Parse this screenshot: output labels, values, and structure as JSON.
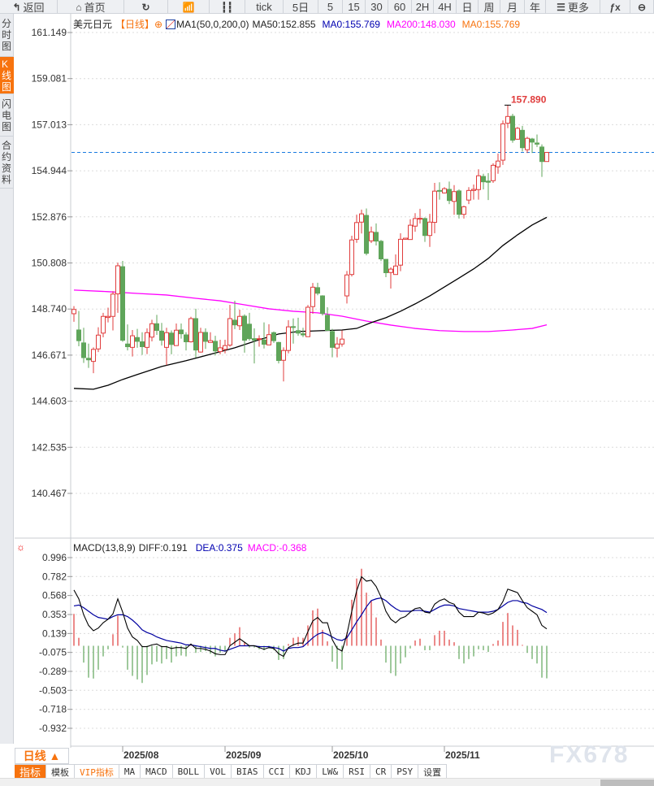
{
  "toolbar": {
    "items": [
      {
        "label": "返回",
        "icon": "back-arrow-icon",
        "w": 71
      },
      {
        "label": "首页",
        "icon": "home-icon",
        "w": 82
      },
      {
        "label": "",
        "icon": "refresh-icon",
        "w": 54
      },
      {
        "label": "",
        "icon": "indicator-chart-icon",
        "w": 51
      },
      {
        "label": "",
        "icon": "candlestick-icon",
        "w": 44
      },
      {
        "label": "tick",
        "w": 47
      },
      {
        "label": "5日",
        "w": 43
      },
      {
        "label": "5",
        "w": 30
      },
      {
        "label": "15",
        "w": 28
      },
      {
        "label": "30",
        "w": 28
      },
      {
        "label": "60",
        "w": 29
      },
      {
        "label": "2H",
        "w": 27
      },
      {
        "label": "4H",
        "w": 28
      },
      {
        "label": "日",
        "w": 27
      },
      {
        "label": "周",
        "w": 27
      },
      {
        "label": "月",
        "w": 30
      },
      {
        "label": "年",
        "w": 26
      },
      {
        "label": "更多",
        "icon": "menu-icon",
        "w": 67
      },
      {
        "label": "",
        "icon": "fx-icon",
        "w": 37
      },
      {
        "label": "",
        "icon": "zoom-icon",
        "w": 29
      }
    ]
  },
  "sidebar": {
    "tabs": [
      {
        "label": "分时图",
        "h": 53
      },
      {
        "label": "K线图",
        "h": 46,
        "active": true
      },
      {
        "label": "闪电图",
        "h": 52
      },
      {
        "label": "合约资料",
        "h": 64
      }
    ]
  },
  "legend": {
    "symbol": "美元日元",
    "period": "【日线】",
    "period_icon": "⊕",
    "ma_setting": "MA1(50,0,200,0)",
    "ma50": "MA50:152.855",
    "ma0_blue": "MA0:155.769",
    "ma200": "MA200:148.030",
    "ma0_orange": "MA0:155.769"
  },
  "macd_legend": {
    "title": "MACD(13,8,9)",
    "diff": "DIFF:0.191",
    "dea": "DEA:0.375",
    "macd": "MACD:-0.368"
  },
  "period_selector": {
    "label": "日线 ▲"
  },
  "bottom_tabs": [
    "指标",
    "模板",
    "VIP指标",
    "MA",
    "MACD",
    "BOLL",
    "VOL",
    "BIAS",
    "CCI",
    "KDJ",
    "LW&",
    "RSI",
    "CR",
    "PSY",
    "设置"
  ],
  "watermark": "FX678",
  "colors": {
    "up": "#e03c3c",
    "down": "#5fa55a",
    "ma50": "#000000",
    "ma200": "#ff00ff",
    "current_price_line": "#1a7be0",
    "dea": "#0000a0",
    "active_tab": "#f7730e"
  },
  "chart_data": [
    {
      "type": "candlestick",
      "title": "美元日元",
      "ylim": [
        140.467,
        161.149
      ],
      "y_ticks": [
        "161.149",
        "159.081",
        "157.013",
        "154.944",
        "152.876",
        "150.808",
        "148.740",
        "146.671",
        "144.603",
        "142.535",
        "140.467"
      ],
      "x_ticks": [
        {
          "label": "2025/08",
          "bar": 11
        },
        {
          "label": "2025/09",
          "bar": 32
        },
        {
          "label": "2025/10",
          "bar": 54
        },
        {
          "label": "2025/11",
          "bar": 77
        }
      ],
      "current_price": 155.769,
      "high_label": {
        "text": "157.890",
        "bar": 90,
        "value": 157.89
      },
      "ohlc": [
        [
          148.53,
          148.87,
          148.17,
          148.72
        ],
        [
          147.8,
          148.65,
          147.07,
          147.32
        ],
        [
          147.22,
          147.9,
          146.32,
          146.56
        ],
        [
          146.53,
          147.19,
          146.1,
          146.46
        ],
        [
          146.39,
          147.02,
          145.86,
          146.93
        ],
        [
          146.95,
          147.92,
          146.81,
          147.57
        ],
        [
          147.66,
          148.57,
          147.47,
          148.41
        ],
        [
          148.36,
          148.8,
          148.14,
          148.41
        ],
        [
          148.41,
          149.54,
          147.78,
          149.41
        ],
        [
          149.42,
          150.82,
          148.57,
          150.68
        ],
        [
          150.64,
          150.9,
          147.27,
          147.34
        ],
        [
          147.17,
          148.05,
          146.88,
          147.05
        ],
        [
          147.02,
          147.8,
          146.61,
          147.54
        ],
        [
          147.46,
          147.85,
          147.0,
          147.29
        ],
        [
          147.27,
          147.7,
          146.68,
          147.05
        ],
        [
          147.02,
          147.87,
          146.72,
          147.68
        ],
        [
          147.48,
          148.26,
          147.29,
          148.08
        ],
        [
          148.08,
          148.48,
          147.58,
          147.78
        ],
        [
          147.75,
          148.12,
          147.1,
          147.34
        ],
        [
          147.02,
          147.9,
          146.22,
          147.68
        ],
        [
          147.66,
          147.78,
          146.71,
          147.15
        ],
        [
          147.1,
          148.09,
          147.1,
          147.79
        ],
        [
          147.8,
          148.09,
          147.41,
          147.63
        ],
        [
          147.58,
          147.7,
          146.88,
          147.27
        ],
        [
          147.27,
          148.39,
          147.24,
          148.31
        ],
        [
          148.31,
          148.75,
          146.56,
          146.9
        ],
        [
          146.81,
          147.9,
          146.78,
          147.69
        ],
        [
          147.69,
          147.87,
          146.95,
          147.29
        ],
        [
          147.24,
          147.7,
          147.24,
          147.32
        ],
        [
          147.29,
          147.54,
          146.66,
          146.86
        ],
        [
          146.83,
          147.36,
          146.71,
          147.0
        ],
        [
          146.93,
          147.36,
          146.75,
          147.1
        ],
        [
          147.12,
          148.93,
          147.05,
          148.31
        ],
        [
          148.24,
          149.11,
          147.84,
          148.03
        ],
        [
          147.99,
          148.71,
          147.8,
          148.41
        ],
        [
          148.42,
          148.5,
          146.78,
          147.34
        ],
        [
          148.06,
          148.57,
          147.32,
          147.41
        ],
        [
          147.41,
          147.87,
          146.3,
          147.34
        ],
        [
          147.39,
          147.56,
          147.05,
          147.41
        ],
        [
          147.35,
          148.14,
          146.97,
          147.16
        ],
        [
          147.13,
          148.06,
          147.13,
          147.59
        ],
        [
          147.68,
          147.73,
          147.22,
          147.32
        ],
        [
          147.24,
          147.27,
          146.3,
          146.43
        ],
        [
          146.44,
          147.02,
          145.49,
          146.88
        ],
        [
          146.88,
          148.24,
          146.75,
          147.94
        ],
        [
          147.95,
          148.32,
          147.19,
          147.92
        ],
        [
          147.77,
          148.35,
          147.54,
          147.66
        ],
        [
          147.63,
          147.9,
          147.48,
          147.58
        ],
        [
          147.5,
          148.92,
          147.5,
          148.82
        ],
        [
          148.85,
          149.91,
          148.53,
          149.72
        ],
        [
          149.7,
          149.92,
          149.36,
          149.45
        ],
        [
          149.33,
          149.36,
          148.45,
          148.54
        ],
        [
          148.46,
          148.82,
          147.78,
          147.78
        ],
        [
          147.73,
          147.85,
          146.57,
          147.02
        ],
        [
          146.99,
          147.48,
          146.57,
          147.17
        ],
        [
          147.17,
          147.78,
          147.05,
          147.39
        ],
        [
          149.33,
          150.45,
          148.99,
          150.27
        ],
        [
          150.29,
          152.03,
          150.2,
          151.84
        ],
        [
          151.87,
          152.98,
          151.71,
          152.62
        ],
        [
          152.64,
          153.2,
          152.13,
          153.01
        ],
        [
          152.94,
          153.25,
          151.15,
          151.24
        ],
        [
          151.8,
          152.44,
          151.7,
          152.2
        ],
        [
          152.18,
          152.58,
          151.59,
          151.79
        ],
        [
          151.78,
          151.84,
          150.89,
          150.99
        ],
        [
          150.97,
          150.97,
          150.17,
          150.37
        ],
        [
          150.38,
          150.61,
          149.66,
          150.53
        ],
        [
          150.29,
          151.19,
          150.28,
          150.67
        ],
        [
          150.71,
          152.14,
          150.44,
          151.87
        ],
        [
          151.87,
          151.92,
          151.85,
          151.92
        ],
        [
          151.86,
          152.77,
          151.85,
          152.5
        ],
        [
          152.46,
          153.04,
          152.21,
          152.8
        ],
        [
          152.79,
          153.24,
          152.58,
          152.81
        ],
        [
          152.8,
          152.85,
          151.75,
          152.04
        ],
        [
          152.04,
          153.01,
          151.53,
          152.64
        ],
        [
          152.63,
          154.4,
          152.14,
          154.03
        ],
        [
          154.06,
          154.43,
          153.65,
          154.04
        ],
        [
          153.95,
          154.21,
          153.92,
          154.14
        ],
        [
          154.11,
          154.46,
          153.45,
          153.61
        ],
        [
          153.57,
          154.3,
          152.97,
          154.01
        ],
        [
          154.04,
          154.11,
          152.8,
          152.99
        ],
        [
          152.99,
          153.38,
          152.8,
          153.33
        ],
        [
          153.63,
          154.21,
          153.45,
          154.06
        ],
        [
          154.06,
          154.33,
          153.65,
          154.11
        ],
        [
          154.1,
          155.01,
          153.65,
          154.72
        ],
        [
          154.69,
          154.81,
          154.11,
          154.45
        ],
        [
          154.48,
          154.84,
          153.63,
          154.43
        ],
        [
          154.5,
          155.28,
          154.4,
          155.19
        ],
        [
          155.12,
          155.72,
          154.81,
          155.38
        ],
        [
          155.42,
          157.2,
          155.21,
          157.05
        ],
        [
          157.08,
          157.89,
          156.86,
          157.38
        ],
        [
          157.39,
          157.5,
          156.2,
          156.32
        ],
        [
          156.36,
          156.91,
          156.34,
          156.85
        ],
        [
          156.76,
          156.96,
          155.81,
          155.98
        ],
        [
          155.89,
          156.47,
          155.74,
          156.4
        ],
        [
          156.37,
          156.42,
          155.74,
          156.23
        ],
        [
          156.19,
          156.57,
          156.01,
          156.14
        ],
        [
          156.01,
          156.13,
          154.67,
          155.36
        ],
        [
          155.36,
          155.74,
          155.35,
          155.769
        ]
      ],
      "ma50": [
        [
          1,
          145.18
        ],
        [
          5,
          145.14
        ],
        [
          8,
          145.32
        ],
        [
          11,
          145.58
        ],
        [
          14,
          145.8
        ],
        [
          19,
          146.16
        ],
        [
          24,
          146.42
        ],
        [
          29,
          146.71
        ],
        [
          34,
          147.0
        ],
        [
          39,
          147.36
        ],
        [
          43,
          147.62
        ],
        [
          47,
          147.73
        ],
        [
          52,
          147.77
        ],
        [
          56,
          147.8
        ],
        [
          59,
          147.87
        ],
        [
          62,
          148.13
        ],
        [
          65,
          148.35
        ],
        [
          68,
          148.64
        ],
        [
          71,
          148.97
        ],
        [
          74,
          149.33
        ],
        [
          77,
          149.73
        ],
        [
          80,
          150.13
        ],
        [
          83,
          150.54
        ],
        [
          86,
          151.01
        ],
        [
          89,
          151.59
        ],
        [
          92,
          152.07
        ],
        [
          95,
          152.51
        ],
        [
          98,
          152.855
        ]
      ],
      "ma200": [
        [
          1,
          149.59
        ],
        [
          8,
          149.52
        ],
        [
          14,
          149.44
        ],
        [
          20,
          149.37
        ],
        [
          26,
          149.22
        ],
        [
          31,
          149.11
        ],
        [
          36,
          148.93
        ],
        [
          41,
          148.75
        ],
        [
          46,
          148.64
        ],
        [
          51,
          148.57
        ],
        [
          56,
          148.42
        ],
        [
          61,
          148.2
        ],
        [
          66,
          148.02
        ],
        [
          71,
          147.87
        ],
        [
          76,
          147.77
        ],
        [
          81,
          147.73
        ],
        [
          86,
          147.73
        ],
        [
          91,
          147.8
        ],
        [
          95,
          147.87
        ],
        [
          98,
          148.03
        ]
      ]
    },
    {
      "type": "macd",
      "title": "MACD(13,8,9)",
      "ylim": [
        -0.932,
        0.996
      ],
      "y_ticks": [
        "0.996",
        "0.782",
        "0.568",
        "0.353",
        "0.139",
        "-0.075",
        "-0.289",
        "-0.503",
        "-0.718",
        "-0.932"
      ],
      "hist": [
        0.36,
        0.09,
        -0.19,
        -0.36,
        -0.37,
        -0.27,
        -0.12,
        -0.04,
        0.13,
        0.34,
        -0.02,
        -0.27,
        -0.34,
        -0.38,
        -0.42,
        -0.33,
        -0.21,
        -0.18,
        -0.2,
        -0.15,
        -0.19,
        -0.12,
        -0.11,
        -0.12,
        0.02,
        -0.08,
        -0.07,
        -0.06,
        -0.09,
        -0.12,
        -0.08,
        -0.07,
        0.09,
        0.14,
        0.21,
        0.04,
        -0.02,
        -0.02,
        -0.04,
        -0.05,
        -0.03,
        -0.05,
        -0.16,
        -0.15,
        0.02,
        0.09,
        0.1,
        0.09,
        0.23,
        0.4,
        0.42,
        0.18,
        0.05,
        -0.18,
        -0.26,
        -0.27,
        0.15,
        0.52,
        0.76,
        0.87,
        0.6,
        0.51,
        0.32,
        0.07,
        -0.19,
        -0.31,
        -0.34,
        -0.2,
        -0.13,
        -0.03,
        0.06,
        0.08,
        -0.05,
        -0.05,
        0.12,
        0.17,
        0.17,
        0.07,
        0.04,
        -0.15,
        -0.2,
        -0.15,
        -0.12,
        -0.04,
        -0.05,
        -0.07,
        0.02,
        0.06,
        0.27,
        0.37,
        0.23,
        0.18,
        0.01,
        -0.08,
        -0.15,
        -0.2,
        -0.36,
        -0.368
      ],
      "diff": [
        0.63,
        0.53,
        0.35,
        0.23,
        0.17,
        0.2,
        0.26,
        0.3,
        0.36,
        0.53,
        0.38,
        0.2,
        0.1,
        0.06,
        -0.01,
        -0.01,
        0.01,
        0.02,
        -0.01,
        -0.01,
        -0.03,
        -0.02,
        -0.02,
        -0.03,
        0.02,
        -0.03,
        -0.03,
        -0.04,
        -0.06,
        -0.09,
        -0.1,
        -0.1,
        0.0,
        0.04,
        0.08,
        0.04,
        0.0,
        0.0,
        -0.02,
        -0.04,
        -0.02,
        -0.03,
        -0.09,
        -0.12,
        -0.02,
        0.01,
        0.03,
        0.03,
        0.16,
        0.28,
        0.32,
        0.26,
        0.26,
        0.07,
        -0.03,
        -0.06,
        0.13,
        0.39,
        0.62,
        0.78,
        0.73,
        0.74,
        0.67,
        0.55,
        0.39,
        0.3,
        0.26,
        0.31,
        0.33,
        0.38,
        0.42,
        0.43,
        0.38,
        0.37,
        0.47,
        0.51,
        0.53,
        0.49,
        0.47,
        0.38,
        0.33,
        0.33,
        0.33,
        0.38,
        0.37,
        0.35,
        0.37,
        0.41,
        0.5,
        0.64,
        0.62,
        0.6,
        0.51,
        0.43,
        0.39,
        0.35,
        0.23,
        0.191
      ],
      "dea": [
        0.45,
        0.46,
        0.43,
        0.39,
        0.35,
        0.32,
        0.31,
        0.3,
        0.33,
        0.35,
        0.35,
        0.33,
        0.29,
        0.24,
        0.18,
        0.15,
        0.13,
        0.1,
        0.08,
        0.06,
        0.05,
        0.04,
        0.03,
        0.01,
        0.01,
        0.0,
        -0.01,
        -0.02,
        -0.03,
        -0.03,
        -0.05,
        -0.06,
        -0.04,
        -0.02,
        0.0,
        0.0,
        0.0,
        0.0,
        -0.01,
        -0.01,
        -0.01,
        -0.02,
        -0.03,
        -0.06,
        -0.03,
        -0.02,
        -0.02,
        -0.01,
        0.04,
        0.09,
        0.13,
        0.15,
        0.13,
        0.1,
        0.07,
        0.06,
        0.09,
        0.18,
        0.27,
        0.35,
        0.44,
        0.51,
        0.53,
        0.54,
        0.51,
        0.46,
        0.42,
        0.39,
        0.39,
        0.39,
        0.4,
        0.4,
        0.39,
        0.38,
        0.41,
        0.44,
        0.46,
        0.46,
        0.45,
        0.42,
        0.41,
        0.4,
        0.39,
        0.38,
        0.38,
        0.38,
        0.39,
        0.41,
        0.45,
        0.49,
        0.51,
        0.51,
        0.49,
        0.48,
        0.45,
        0.43,
        0.41,
        0.375
      ]
    }
  ]
}
